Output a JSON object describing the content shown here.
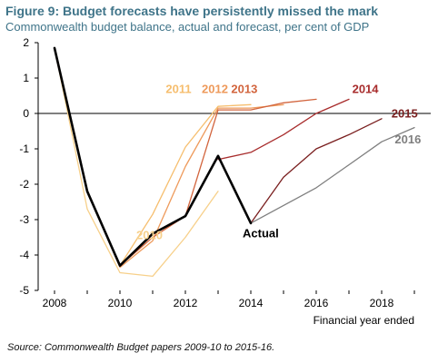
{
  "title": "Figure 9: Budget forecasts have persistently missed the mark",
  "subtitle": "Commonwealth budget balance, actual and forecast, per cent of GDP",
  "source": "Source: Commonwealth Budget papers 2009-10 to 2015-16.",
  "colors": {
    "actual": "#000000",
    "f2010": "#f7d08a",
    "f2011": "#f6be6e",
    "f2012": "#ee9a5b",
    "f2013": "#d2643d",
    "f2014": "#a82d2d",
    "f2015": "#7a1f1f",
    "f2016": "#7f7f7f",
    "axis": "#000000"
  },
  "chart_data": {
    "type": "line",
    "title": "Figure 9: Budget forecasts have persistently missed the mark",
    "subtitle": "Commonwealth budget balance, actual and forecast, per cent of GDP",
    "xlabel": "Financial year ended",
    "ylabel": "",
    "xlim": [
      2007.5,
      2019.5
    ],
    "ylim": [
      -5,
      2
    ],
    "xticks": [
      "2008",
      "2010",
      "2012",
      "2014",
      "2016",
      "2018"
    ],
    "yticks": [
      "2",
      "1",
      "0",
      "-1",
      "-2",
      "-3",
      "-4",
      "-5"
    ],
    "grid": false,
    "series": [
      {
        "name": "2010",
        "color_key": "f2010",
        "label_pos": [
          2010.5,
          -3.55
        ],
        "points": [
          [
            2008,
            1.85
          ],
          [
            2009,
            -2.7
          ],
          [
            2010,
            -4.5
          ],
          [
            2011,
            -4.6
          ],
          [
            2012,
            -3.5
          ],
          [
            2013,
            -2.2
          ]
        ]
      },
      {
        "name": "2011",
        "color_key": "f2011",
        "label_pos": [
          2011.4,
          0.58
        ],
        "points": [
          [
            2008,
            1.85
          ],
          [
            2009,
            -2.2
          ],
          [
            2010,
            -4.3
          ],
          [
            2011,
            -2.85
          ],
          [
            2012,
            -0.95
          ],
          [
            2013,
            0.2
          ],
          [
            2014,
            0.25
          ]
        ]
      },
      {
        "name": "2012",
        "color_key": "f2012",
        "label_pos": [
          2012.5,
          0.58
        ],
        "points": [
          [
            2008,
            1.85
          ],
          [
            2009,
            -2.2
          ],
          [
            2010,
            -4.35
          ],
          [
            2011,
            -3.6
          ],
          [
            2012,
            -1.5
          ],
          [
            2013,
            0.15
          ],
          [
            2014,
            0.15
          ],
          [
            2015,
            0.25
          ]
        ]
      },
      {
        "name": "2013",
        "color_key": "f2013",
        "label_pos": [
          2013.4,
          0.58
        ],
        "points": [
          [
            2008,
            1.85
          ],
          [
            2009,
            -2.2
          ],
          [
            2010,
            -4.3
          ],
          [
            2011,
            -3.5
          ],
          [
            2012,
            -2.9
          ],
          [
            2013,
            0.1
          ],
          [
            2014,
            0.1
          ],
          [
            2015,
            0.3
          ],
          [
            2016,
            0.4
          ]
        ]
      },
      {
        "name": "2014",
        "color_key": "f2014",
        "label_pos": [
          2017.1,
          0.58
        ],
        "points": [
          [
            2013,
            -1.3
          ],
          [
            2014,
            -1.1
          ],
          [
            2015,
            -0.6
          ],
          [
            2016,
            0.0
          ],
          [
            2017,
            0.4
          ]
        ]
      },
      {
        "name": "2015",
        "color_key": "f2015",
        "label_pos": [
          2018.3,
          -0.12
        ],
        "points": [
          [
            2014,
            -3.1
          ],
          [
            2015,
            -1.8
          ],
          [
            2016,
            -1.0
          ],
          [
            2017,
            -0.6
          ],
          [
            2018,
            -0.15
          ]
        ]
      },
      {
        "name": "2016",
        "color_key": "f2016",
        "label_pos": [
          2018.4,
          -0.85
        ],
        "points": [
          [
            2014,
            -3.1
          ],
          [
            2015,
            -2.6
          ],
          [
            2016,
            -2.1
          ],
          [
            2017,
            -1.45
          ],
          [
            2018,
            -0.8
          ],
          [
            2019,
            -0.4
          ]
        ]
      },
      {
        "name": "Actual",
        "color_key": "actual",
        "label_pos": [
          2013.75,
          -3.5
        ],
        "bold": true,
        "points": [
          [
            2008,
            1.85
          ],
          [
            2009,
            -2.2
          ],
          [
            2010,
            -4.3
          ],
          [
            2011,
            -3.4
          ],
          [
            2012,
            -2.9
          ],
          [
            2013,
            -1.2
          ],
          [
            2014,
            -3.1
          ]
        ]
      }
    ]
  }
}
